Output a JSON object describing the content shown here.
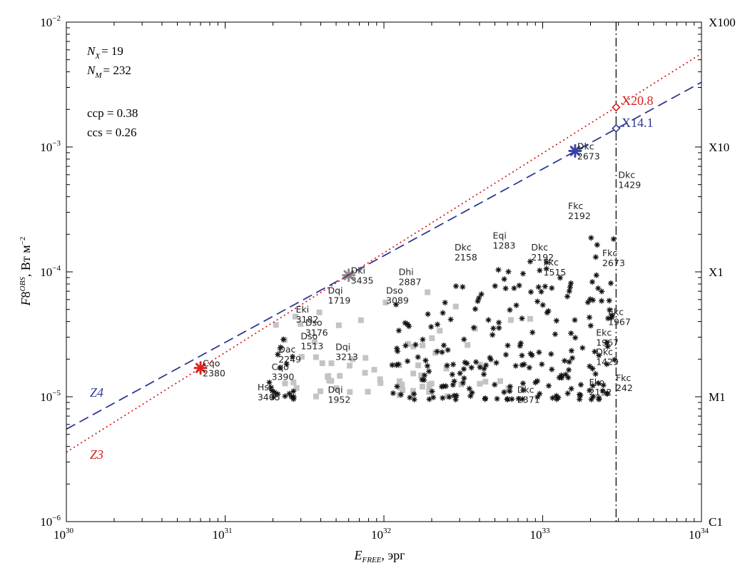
{
  "chart_data": {
    "type": "scatter",
    "title": "",
    "xlabel": "E_FREE, эрг",
    "ylabel": "F8^OBS, Вт м^-2",
    "xscale": "log",
    "yscale": "log",
    "xlim": [
      1e+30,
      1e+34
    ],
    "ylim": [
      1e-06,
      0.01
    ],
    "x_ticks": [
      {
        "value": 1e+30,
        "base": "10",
        "exp": "30"
      },
      {
        "value": 1e+31,
        "base": "10",
        "exp": "31"
      },
      {
        "value": 1e+32,
        "base": "10",
        "exp": "32"
      },
      {
        "value": 1e+33,
        "base": "10",
        "exp": "33"
      },
      {
        "value": 1e+34,
        "base": "10",
        "exp": "34"
      }
    ],
    "y_ticks": [
      {
        "value": 1e-06,
        "base": "10",
        "exp": "−6"
      },
      {
        "value": 1e-05,
        "base": "10",
        "exp": "−5"
      },
      {
        "value": 0.0001,
        "base": "10",
        "exp": "−4"
      },
      {
        "value": 0.001,
        "base": "10",
        "exp": "−3"
      },
      {
        "value": 0.01,
        "base": "10",
        "exp": "−2"
      }
    ],
    "right_axis_ticks": [
      {
        "value": 1e-06,
        "label": "C1"
      },
      {
        "value": 1e-05,
        "label": "M1"
      },
      {
        "value": 0.0001,
        "label": "X1"
      },
      {
        "value": 0.001,
        "label": "X10"
      },
      {
        "value": 0.01,
        "label": "X100"
      }
    ],
    "stats": {
      "nx_symbol": "N",
      "nx_sub": "X",
      "nx_value": "= 19",
      "nm_symbol": "N",
      "nm_sub": "M",
      "nm_value": "= 232",
      "ccp": "ccp = 0.38",
      "ccs": "ccs = 0.26"
    },
    "lines": [
      {
        "label": "Z4",
        "style": "dashed",
        "color": "#2e3a93",
        "points": [
          [
            1e+30,
            5.5e-06
          ],
          [
            1e+34,
            0.0033
          ]
        ]
      },
      {
        "label": "Z3",
        "style": "dotted",
        "color": "#d62020",
        "points": [
          [
            1e+30,
            3.6e-06
          ],
          [
            1e+34,
            0.0056
          ]
        ]
      }
    ],
    "vline": {
      "x": 2.9e+33,
      "style": "dashdot",
      "color": "#222222"
    },
    "markers": [
      {
        "label": "X20.8",
        "x": 2.9e+33,
        "y": 0.00208,
        "color": "#d62020"
      },
      {
        "label": "X14.1",
        "x": 2.9e+33,
        "y": 0.00141,
        "color": "#2e3a93"
      }
    ],
    "highlight_points": [
      {
        "x": 7e+30,
        "y": 1.7e-05,
        "color": "#e02424"
      },
      {
        "x": 6e+31,
        "y": 9.4e-05,
        "color": "#8a8a8a"
      },
      {
        "x": 1.6e+33,
        "y": 0.00093,
        "color": "#3a44a5"
      }
    ],
    "point_labels": [
      {
        "cls": "Dkc",
        "num": "2673",
        "x": 1.6e+33,
        "y": 0.00093
      },
      {
        "cls": "Dkc",
        "num": "1429",
        "x": 2.9e+33,
        "y": 0.00055
      },
      {
        "cls": "Fkc",
        "num": "2192",
        "x": 1.4e+33,
        "y": 0.00031
      },
      {
        "cls": "Fkc",
        "num": "2673",
        "x": 2.3e+33,
        "y": 0.00013
      },
      {
        "cls": "Ekc",
        "num": "1967",
        "x": 2.1e+33,
        "y": 3e-05
      },
      {
        "cls": "Dkc",
        "num": "1429",
        "x": 2.1e+33,
        "y": 2.1e-05
      },
      {
        "cls": "Fkc",
        "num": "242",
        "x": 2.8e+33,
        "y": 1.3e-05
      },
      {
        "cls": "Fko",
        "num": "2192",
        "x": 1.9e+33,
        "y": 1.2e-05
      },
      {
        "cls": "Ekc",
        "num": "1967",
        "x": 2.5e+33,
        "y": 4.4e-05
      },
      {
        "cls": "Eqi",
        "num": "1283",
        "x": 4.7e+32,
        "y": 0.00018
      },
      {
        "cls": "Dkc",
        "num": "2158",
        "x": 2.7e+32,
        "y": 0.000145
      },
      {
        "cls": "Dkc",
        "num": "2192",
        "x": 8.2e+32,
        "y": 0.000145
      },
      {
        "cls": "Dhi",
        "num": "2887",
        "x": 1.2e+32,
        "y": 9.2e-05
      },
      {
        "cls": "Dki",
        "num": "3435",
        "x": 6e+31,
        "y": 9.4e-05
      },
      {
        "cls": "Dqi",
        "num": "1719",
        "x": 4.3e+31,
        "y": 6.5e-05
      },
      {
        "cls": "Dso",
        "num": "3089",
        "x": 1e+32,
        "y": 6.5e-05
      },
      {
        "cls": "Eki",
        "num": "3182",
        "x": 2.7e+31,
        "y": 4.6e-05
      },
      {
        "cls": "Dso",
        "num": "1513",
        "x": 2.9e+31,
        "y": 2.8e-05
      },
      {
        "cls": "Dac",
        "num": "2249",
        "x": 2.1e+31,
        "y": 2.2e-05
      },
      {
        "cls": "Cqo",
        "num": "3390",
        "x": 1.9e+31,
        "y": 1.6e-05
      },
      {
        "cls": "Hsx",
        "num": "3405",
        "x": 1.55e+31,
        "y": 1.1e-05
      },
      {
        "cls": "Cqo",
        "num": "2380",
        "x": 7e+30,
        "y": 1.7e-05
      },
      {
        "cls": "Dqi",
        "num": "3213",
        "x": 4.8e+31,
        "y": 2.3e-05
      },
      {
        "cls": "Dso",
        "num": "3176",
        "x": 3.1e+31,
        "y": 3.6e-05
      },
      {
        "cls": "Dkc",
        "num": "2371",
        "x": 6.7e+32,
        "y": 1.05e-05
      },
      {
        "cls": "Dqi",
        "num": "1952",
        "x": 4.3e+31,
        "y": 1.05e-05
      },
      {
        "cls": "Fkc",
        "num": "1515",
        "x": 9.8e+32,
        "y": 0.00011
      }
    ],
    "black_cloud": {
      "count": 232,
      "x_min": 2.2e+31,
      "x_max": 2.9e+33,
      "y_min": 9.5e-06,
      "y_max": 0.00022
    },
    "gray_cloud": {
      "count": 70,
      "x_min": 1.8e+31,
      "x_max": 2.1e+33,
      "y_min": 1e-05,
      "y_max": 9.4e-05
    }
  }
}
